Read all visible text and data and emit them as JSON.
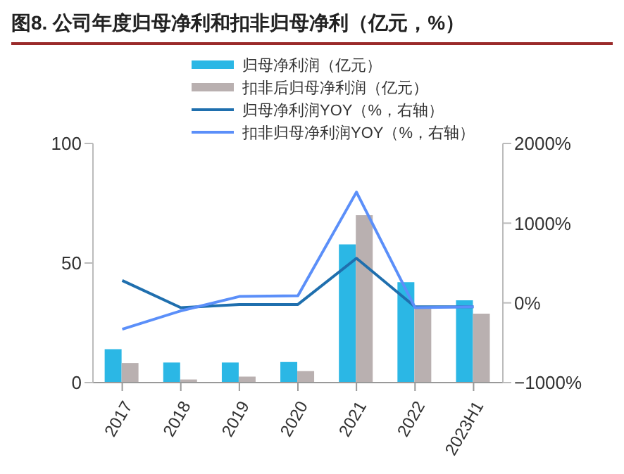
{
  "chart_data": {
    "type": "bar",
    "title": "图8. 公司年度归母净利和扣非归母净利（亿元，%）",
    "categories": [
      "2017",
      "2018",
      "2019",
      "2020",
      "2021",
      "2022",
      "2023H1"
    ],
    "series": [
      {
        "name": "归母净利润（亿元）",
        "color": "#2bb7e5",
        "values": [
          14,
          8.4,
          8.4,
          8.6,
          57.8,
          42,
          34.4
        ]
      },
      {
        "name": "扣非后归母净利润（亿元）",
        "color": "#b9b0b0",
        "values": [
          8.2,
          1.3,
          2.5,
          4.8,
          70,
          31.8,
          28.8
        ]
      },
      {
        "name": "归母净利润YOY（%，右轴）",
        "type": "line",
        "axis": "y2",
        "color": "#1f6fae",
        "values": [
          280,
          -60,
          -20,
          -20,
          560,
          -50,
          -50
        ]
      },
      {
        "name": "扣非归母净利润YOY（%，右轴）",
        "type": "line",
        "axis": "y2",
        "color": "#5b8ff9",
        "values": [
          -330,
          -100,
          80,
          90,
          1390,
          -60,
          -50
        ]
      }
    ],
    "ylim": [
      0,
      100
    ],
    "yticks": [
      0,
      50,
      100
    ],
    "y2lim": [
      -1000,
      2000
    ],
    "y2ticks": [
      {
        "value": -1000,
        "label": "−1000%"
      },
      {
        "value": 0,
        "label": "0%"
      },
      {
        "value": 1000,
        "label": "1000%"
      },
      {
        "value": 2000,
        "label": "2000%"
      }
    ],
    "legend": "top",
    "marker": "none",
    "line_style": "solid"
  }
}
